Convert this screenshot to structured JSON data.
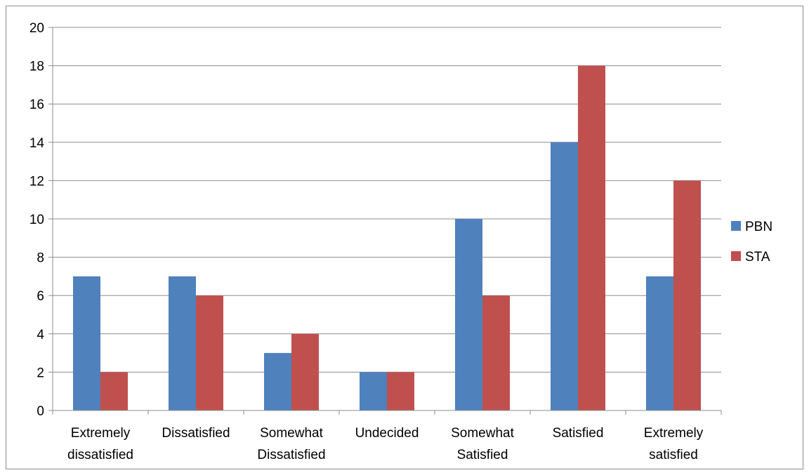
{
  "chart_data": {
    "type": "bar",
    "categories": [
      [
        "Extremely",
        "dissatisfied"
      ],
      [
        "Dissatisfied"
      ],
      [
        "Somewhat",
        "Dissatisfied"
      ],
      [
        "Undecided"
      ],
      [
        "Somewhat",
        "Satisfied"
      ],
      [
        "Satisfied"
      ],
      [
        "Extremely",
        "satisfied"
      ]
    ],
    "series": [
      {
        "name": "PBN",
        "color": "#4f81bd",
        "values": [
          7,
          7,
          3,
          2,
          10,
          14,
          7
        ]
      },
      {
        "name": "STA",
        "color": "#c0504d",
        "values": [
          2,
          6,
          4,
          2,
          6,
          18,
          12
        ]
      }
    ],
    "ylim": [
      0,
      20
    ],
    "yticks": [
      0,
      2,
      4,
      6,
      8,
      10,
      12,
      14,
      16,
      18,
      20
    ],
    "grid": true,
    "legend_position": "right",
    "title": "",
    "xlabel": "",
    "ylabel": ""
  }
}
